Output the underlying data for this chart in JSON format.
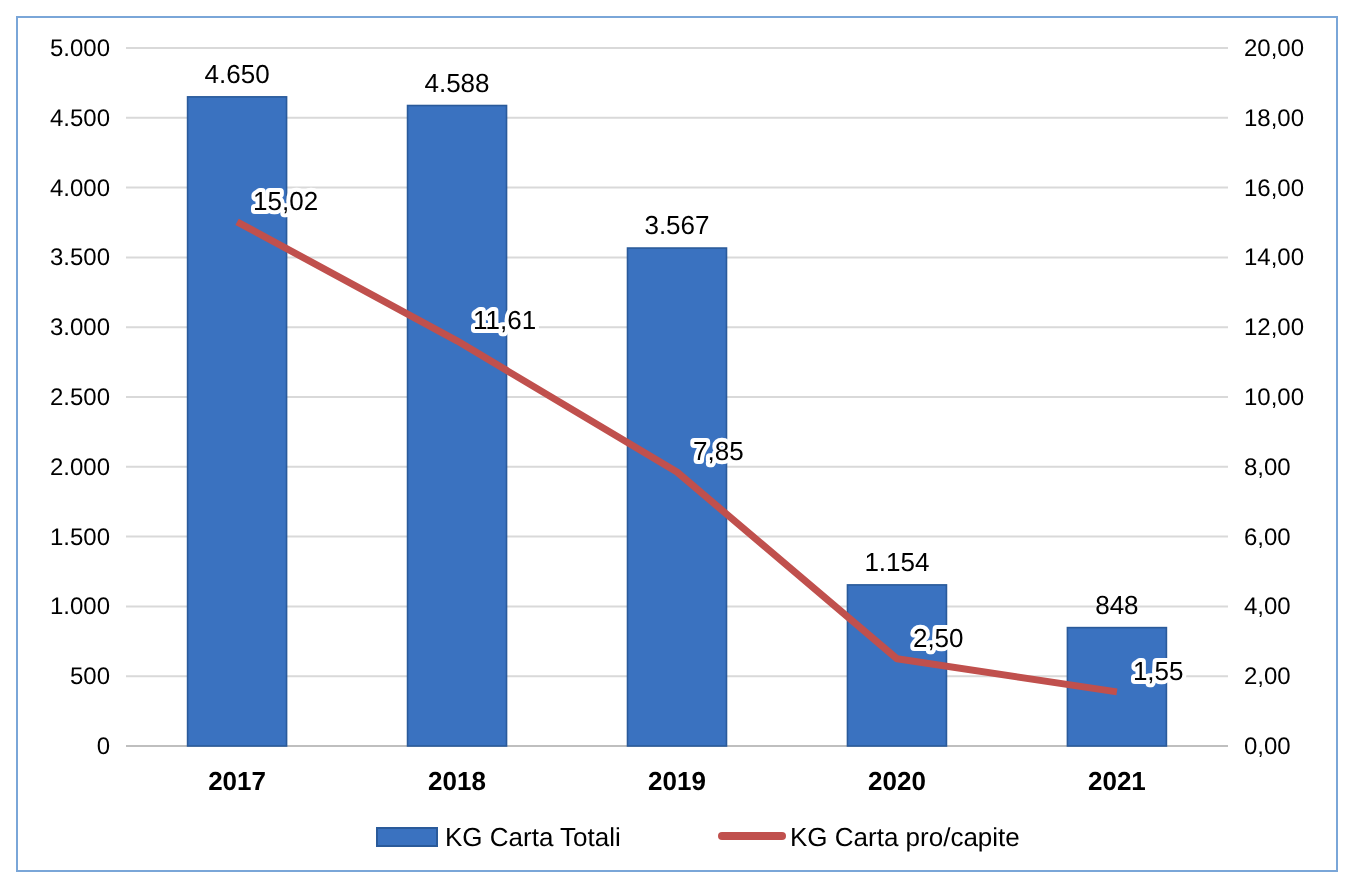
{
  "chart_data": {
    "type": "bar",
    "categories": [
      "2017",
      "2018",
      "2019",
      "2020",
      "2021"
    ],
    "series": [
      {
        "name": "KG Carta Totali",
        "color": "#3a72c0",
        "values": [
          4650,
          4588,
          3567,
          1154,
          848
        ],
        "value_labels": [
          "4.650",
          "4.588",
          "3.567",
          "1.154",
          "848"
        ]
      },
      {
        "name": "KG Carta pro/capite",
        "type": "line",
        "axis": "y2",
        "color": "#c0504d",
        "values": [
          15.02,
          11.61,
          7.85,
          2.5,
          1.55
        ],
        "value_labels": [
          "15,02",
          "11,61",
          "7,85",
          "2,50",
          "1,55"
        ]
      }
    ],
    "ylim": [
      0,
      5000
    ],
    "yticks": [
      {
        "value": 0,
        "label": "0"
      },
      {
        "value": 500,
        "label": "500"
      },
      {
        "value": 1000,
        "label": "1.000"
      },
      {
        "value": 1500,
        "label": "1.500"
      },
      {
        "value": 2000,
        "label": "2.000"
      },
      {
        "value": 2500,
        "label": "2.500"
      },
      {
        "value": 3000,
        "label": "3.000"
      },
      {
        "value": 3500,
        "label": "3.500"
      },
      {
        "value": 4000,
        "label": "4.000"
      },
      {
        "value": 4500,
        "label": "4.500"
      },
      {
        "value": 5000,
        "label": "5.000"
      }
    ],
    "y2lim": [
      0,
      20
    ],
    "y2ticks": [
      {
        "value": 0,
        "label": "0,00"
      },
      {
        "value": 2,
        "label": "2,00"
      },
      {
        "value": 4,
        "label": "4,00"
      },
      {
        "value": 6,
        "label": "6,00"
      },
      {
        "value": 8,
        "label": "8,00"
      },
      {
        "value": 10,
        "label": "10,00"
      },
      {
        "value": 12,
        "label": "12,00"
      },
      {
        "value": 14,
        "label": "14,00"
      },
      {
        "value": 16,
        "label": "16,00"
      },
      {
        "value": 18,
        "label": "18,00"
      },
      {
        "value": 20,
        "label": "20,00"
      }
    ],
    "grid": "y",
    "legend": "bottom"
  }
}
